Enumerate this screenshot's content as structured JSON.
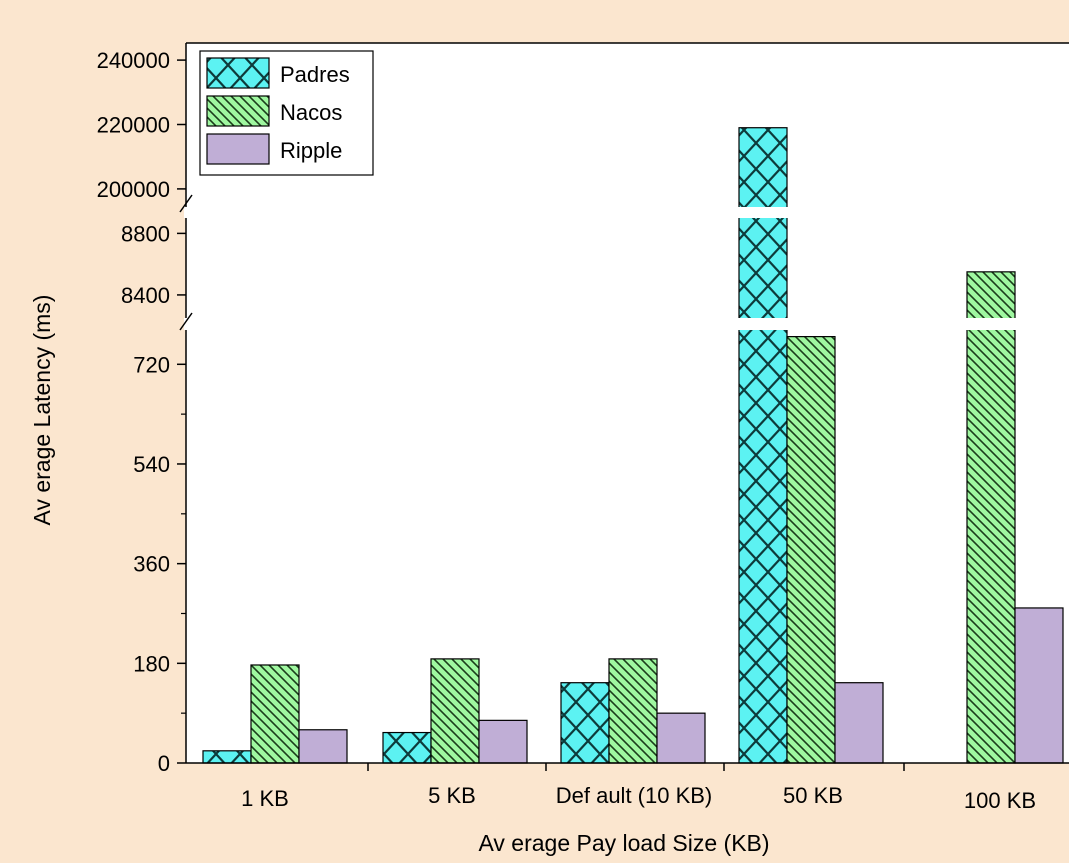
{
  "chart_data": {
    "type": "bar",
    "title": "",
    "xlabel": "Av erage Pay load Size (KB)",
    "ylabel": "Av erage Latency (ms)",
    "categories": [
      "1 KB",
      "5 KB",
      "Def ault (10 KB)",
      "50 KB",
      "100 KB"
    ],
    "y_axis": {
      "broken": true,
      "segments": [
        {
          "range": [
            0,
            800
          ],
          "ticks": [
            "0",
            "180",
            "360",
            "540",
            "720"
          ],
          "tick_values": [
            0,
            180,
            360,
            540,
            720
          ]
        },
        {
          "range": [
            8250,
            8900
          ],
          "ticks": [
            "8400",
            "8800"
          ],
          "tick_values": [
            8400,
            8800
          ]
        },
        {
          "range": [
            195000,
            245000
          ],
          "ticks": [
            "200000",
            "220000",
            "240000"
          ],
          "tick_values": [
            200000,
            220000,
            240000
          ]
        }
      ]
    },
    "series": [
      {
        "name": "Padres",
        "color": "#5cf2f2",
        "pattern": "crosshatch-diamond",
        "values": [
          22,
          55,
          145,
          219000,
          null
        ]
      },
      {
        "name": "Nacos",
        "color": "#9ff7a0",
        "pattern": "diagonal-lines",
        "values": [
          177,
          188,
          188,
          770,
          8550
        ]
      },
      {
        "name": "Ripple",
        "color": "#c0aed6",
        "pattern": "solid",
        "values": [
          60,
          77,
          90,
          145,
          280
        ]
      }
    ],
    "legend": {
      "placement": "top-left"
    },
    "grid": false
  }
}
